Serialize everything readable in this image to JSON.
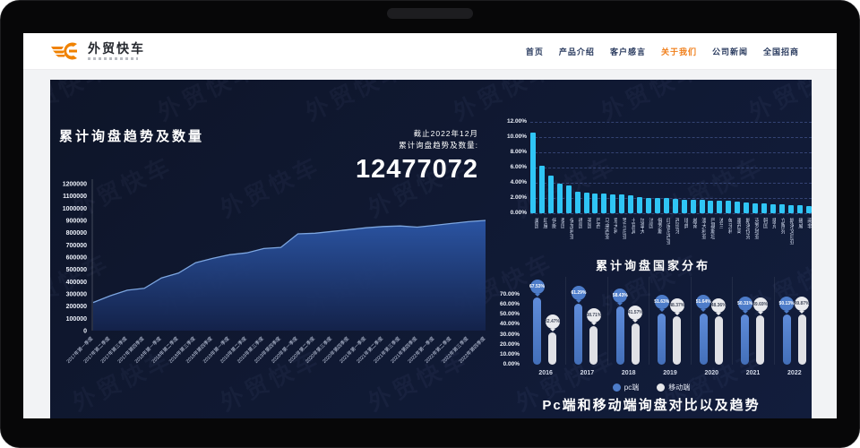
{
  "header": {
    "logo_text": "外贸快车",
    "nav": [
      {
        "label": "首页",
        "active": false
      },
      {
        "label": "产品介绍",
        "active": false
      },
      {
        "label": "客户感言",
        "active": false
      },
      {
        "label": "关于我们",
        "active": true
      },
      {
        "label": "公司新闻",
        "active": false
      },
      {
        "label": "全国招商",
        "active": false
      }
    ]
  },
  "colors": {
    "accent_orange": "#f07d17",
    "dashboard_bg": "#0f1730",
    "cyan_bar": "#2fc5f5",
    "pc_blue": "#4d7cc9",
    "mobile_white": "#e0e1e6",
    "area_fill_top": "#2c57a8",
    "area_line": "#7da6e0"
  },
  "dashboard": {
    "watermark": "外贸快车"
  },
  "chart_data": [
    {
      "id": "trend",
      "type": "area",
      "title": "累计询盘趋势及数量",
      "note_line1": "截止2022年12月",
      "note_line2": "累计询盘趋势及数量:",
      "total": "12477072",
      "x": [
        "2017年第一季度",
        "2017年第二季度",
        "2017年第三季度",
        "2017年第四季度",
        "2018年第一季度",
        "2018年第二季度",
        "2018年第三季度",
        "2018年第四季度",
        "2019年第一季度",
        "2019年第二季度",
        "2019年第三季度",
        "2019年第四季度",
        "2020年第一季度",
        "2020年第二季度",
        "2020年第三季度",
        "2020年第四季度",
        "2021年第一季度",
        "2021年第二季度",
        "2021年第三季度",
        "2021年第四季度",
        "2022年第一季度",
        "2022年第二季度",
        "2022年第三季度",
        "2022年第四季度"
      ],
      "values": [
        230000,
        285000,
        330000,
        345000,
        430000,
        470000,
        555000,
        590000,
        620000,
        635000,
        670000,
        680000,
        790000,
        795000,
        810000,
        825000,
        840000,
        850000,
        855000,
        845000,
        860000,
        875000,
        890000,
        900000
      ],
      "ylim": [
        0,
        1200000
      ],
      "y_ticks": [
        "1200000",
        "1100000",
        "1000000",
        "900000",
        "800000",
        "700000",
        "600000",
        "500000",
        "400000",
        "300000",
        "200000",
        "100000",
        "0"
      ],
      "grid": false,
      "legend_position": "none"
    },
    {
      "id": "country",
      "type": "bar",
      "title": "累计询盘国家分布",
      "categories": [
        "美国",
        "印度",
        "伊朗",
        "泰国",
        "保加利亚",
        "德国",
        "英国",
        "巴西",
        "马来西亚",
        "意大利",
        "罗马尼亚",
        "土耳其",
        "加拿大",
        "法国",
        "俄罗斯",
        "印度尼西亚",
        "西班牙",
        "瑞典",
        "越南",
        "澳大利亚",
        "巴基斯坦",
        "波兰",
        "匈牙利",
        "墨西哥",
        "斯洛伐克",
        "克罗地亚",
        "韩国",
        "捷克",
        "立陶宛",
        "斯洛文尼亚",
        "挪威",
        "南非"
      ],
      "values": [
        10.62,
        6.21,
        4.98,
        3.92,
        3.68,
        2.81,
        2.72,
        2.65,
        2.58,
        2.52,
        2.43,
        2.31,
        2.18,
        2.05,
        2.02,
        1.98,
        1.85,
        1.78,
        1.75,
        1.72,
        1.7,
        1.68,
        1.62,
        1.58,
        1.45,
        1.32,
        1.25,
        1.22,
        1.15,
        1.12,
        1.05,
        1.0
      ],
      "ylim": [
        0,
        12
      ],
      "y_ticks": [
        "12.00%",
        "10.00%",
        "8.00%",
        "6.00%",
        "4.00%",
        "2.00%",
        "0.00%"
      ],
      "grid": true,
      "legend_position": "none"
    },
    {
      "id": "device",
      "type": "bar",
      "title": "Pc端和移动端询盘对比以及趋势",
      "categories": [
        "2016",
        "2017",
        "2018",
        "2019",
        "2020",
        "2021",
        "2022"
      ],
      "series": [
        {
          "name": "pc端",
          "values": [
            67.53,
            61.29,
            58.43,
            51.63,
            51.64,
            50.31,
            50.13
          ]
        },
        {
          "name": "移动端",
          "values": [
            32.47,
            38.71,
            41.57,
            48.37,
            48.36,
            49.69,
            49.87
          ]
        }
      ],
      "ylim": [
        0,
        70
      ],
      "y_ticks": [
        "70.00%",
        "60.00%",
        "50.00%",
        "40.00%",
        "30.00%",
        "20.00%",
        "10.00%",
        "0.00%"
      ],
      "grid": false,
      "legend_position": "bottom"
    }
  ]
}
